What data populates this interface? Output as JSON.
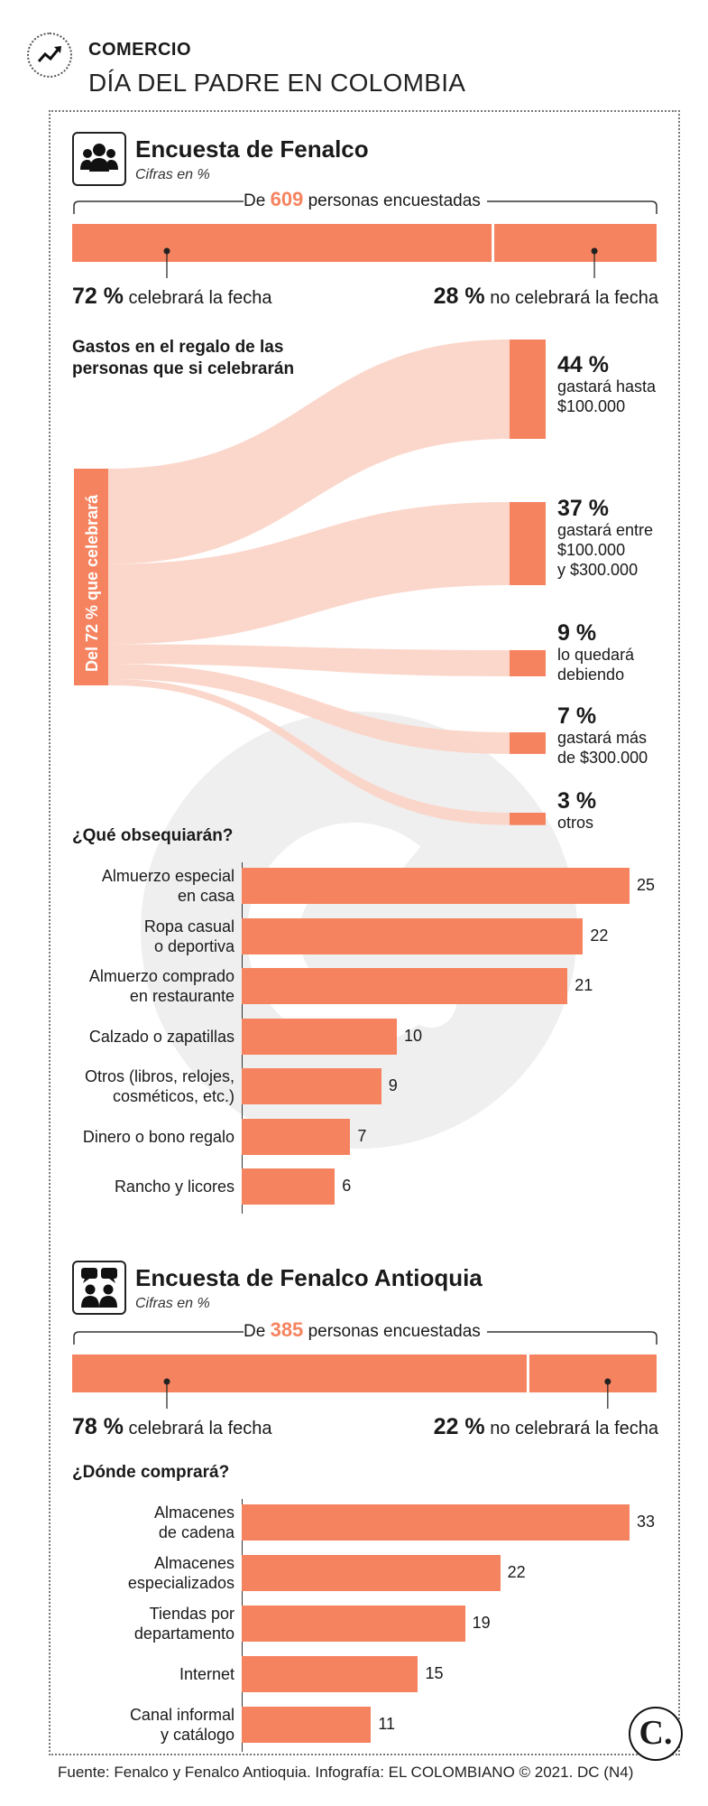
{
  "header": {
    "kicker": "COMERCIO",
    "title": "DÍA DEL PADRE EN COLOMBIA"
  },
  "survey1": {
    "title": "Encuesta de Fenalco",
    "subtitle": "Cifras en %",
    "count_prefix": "De",
    "count": "609",
    "count_suffix": "personas encuestadas",
    "yes_pct": "72 %",
    "yes_label": "celebrará la fecha",
    "no_pct": "28 %",
    "no_label": "no celebrará la fecha",
    "split": [
      72,
      28
    ],
    "flow_title_1": "Gastos en el regalo de las",
    "flow_title_2": "personas que si celebrarán",
    "flow_source": "Del 72 % que celebrará",
    "flows": [
      {
        "pct": "44 %",
        "l1": "gastará hasta",
        "l2": "$100.000",
        "l3": ""
      },
      {
        "pct": "37 %",
        "l1": "gastará entre",
        "l2": "$100.000",
        "l3": "y $300.000"
      },
      {
        "pct": "9 %",
        "l1": "lo quedará",
        "l2": "debiendo",
        "l3": ""
      },
      {
        "pct": "7 %",
        "l1": "gastará más",
        "l2": "de $300.000",
        "l3": ""
      },
      {
        "pct": "3 %",
        "l1": "otros",
        "l2": "",
        "l3": ""
      }
    ],
    "flow_values": [
      44,
      37,
      9,
      7,
      3
    ]
  },
  "survey2": {
    "title": "Encuesta de Fenalco Antioquia",
    "subtitle": "Cifras en %",
    "count_prefix": "De",
    "count": "385",
    "count_suffix": "personas encuestadas",
    "yes_pct": "78 %",
    "yes_label": "celebrará la fecha",
    "no_pct": "22 %",
    "no_label": "no celebrará la fecha",
    "split": [
      78,
      22
    ]
  },
  "chart_data": [
    {
      "type": "bar",
      "title": "¿Qué obsequiarán?",
      "categories": [
        [
          "Almuerzo especial",
          "en casa"
        ],
        [
          "Ropa casual",
          "o deportiva"
        ],
        [
          "Almuerzo comprado",
          "en restaurante"
        ],
        [
          "Calzado o zapatillas"
        ],
        [
          "Otros (libros, relojes,",
          "cosméticos, etc.)"
        ],
        [
          "Dinero o bono regalo"
        ],
        [
          "Rancho y licores"
        ]
      ],
      "values": [
        25,
        22,
        21,
        10,
        9,
        7,
        6
      ],
      "color": "#f6835f"
    },
    {
      "type": "bar",
      "title": "¿Dónde comprará?",
      "categories": [
        [
          "Almacenes",
          "de cadena"
        ],
        [
          "Almacenes",
          "especializados"
        ],
        [
          "Tiendas por",
          "departamento"
        ],
        [
          "Internet"
        ],
        [
          "Canal informal",
          "y catálogo"
        ]
      ],
      "values": [
        33,
        22,
        19,
        15,
        11
      ],
      "color": "#f6835f"
    }
  ],
  "colors": {
    "accent": "#f6835f",
    "flow": "#fbd3c5",
    "watermark": "#ececec"
  },
  "footer": "Fuente: Fenalco y Fenalco Antioquia. Infografía: EL COLOMBIANO © 2021. DC (N4)",
  "logo": "C."
}
